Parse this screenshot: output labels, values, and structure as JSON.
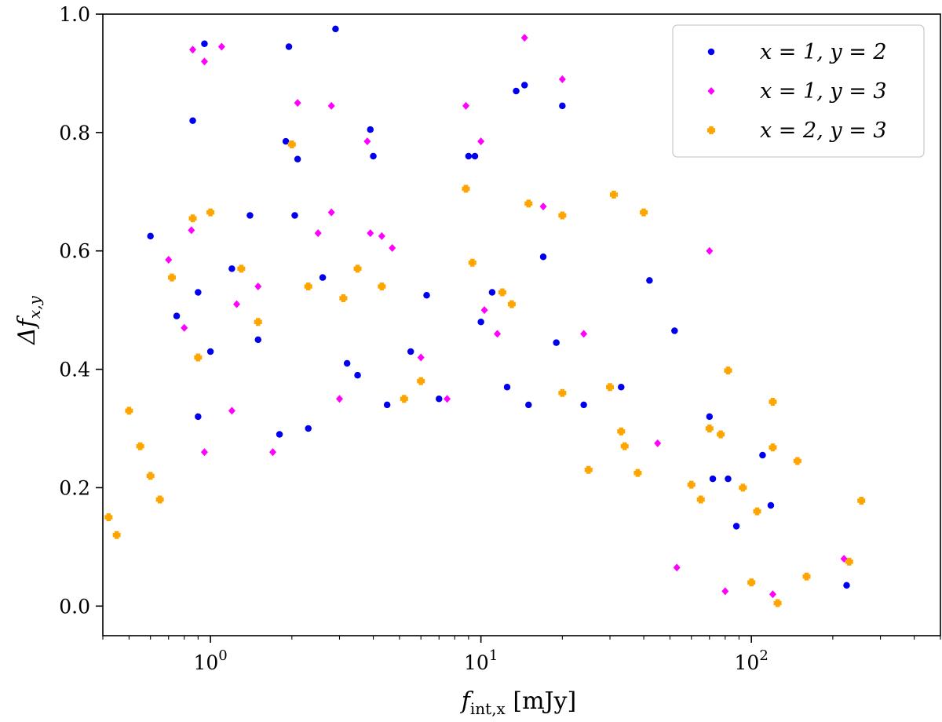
{
  "chart_data": {
    "type": "scatter",
    "title": "",
    "xlabel": "f_int,x [mJy]",
    "xlabel_main": "f",
    "xlabel_sub": "int,x",
    "xlabel_unit": "[mJy]",
    "ylabel": "Δf_x,y",
    "ylabel_main": "Δf",
    "ylabel_sub": "x,y",
    "xscale": "log",
    "xlim": [
      0.4,
      500
    ],
    "ylim": [
      -0.05,
      1.0
    ],
    "grid": false,
    "legend_position": "top-right",
    "x_major_ticks": [
      1,
      10,
      100
    ],
    "x_tick_labels": [
      {
        "base": "10",
        "exp": "0"
      },
      {
        "base": "10",
        "exp": "1"
      },
      {
        "base": "10",
        "exp": "2"
      }
    ],
    "y_ticks": [
      0.0,
      0.2,
      0.4,
      0.6,
      0.8,
      1.0
    ],
    "y_tick_labels": [
      "0.0",
      "0.2",
      "0.4",
      "0.6",
      "0.8",
      "1.0"
    ],
    "series": [
      {
        "name": "x = 1, y = 2",
        "color": "#0000ee",
        "marker": "circle",
        "points": [
          [
            0.6,
            0.625
          ],
          [
            0.75,
            0.49
          ],
          [
            0.86,
            0.82
          ],
          [
            0.9,
            0.53
          ],
          [
            0.95,
            0.95
          ],
          [
            1.0,
            0.43
          ],
          [
            1.2,
            0.57
          ],
          [
            1.4,
            0.66
          ],
          [
            1.95,
            0.945
          ],
          [
            2.05,
            0.66
          ],
          [
            2.1,
            0.755
          ],
          [
            1.9,
            0.785
          ],
          [
            2.9,
            0.975
          ],
          [
            2.6,
            0.555
          ],
          [
            3.9,
            0.805
          ],
          [
            4.0,
            0.76
          ],
          [
            6.3,
            0.525
          ],
          [
            9.0,
            0.76
          ],
          [
            9.5,
            0.76
          ],
          [
            11.0,
            0.53
          ],
          [
            12.5,
            0.37
          ],
          [
            13.5,
            0.87
          ],
          [
            14.5,
            0.88
          ],
          [
            17.0,
            0.59
          ],
          [
            20.0,
            0.845
          ],
          [
            19.0,
            0.445
          ],
          [
            24.0,
            0.34
          ],
          [
            33.0,
            0.37
          ],
          [
            42.0,
            0.55
          ],
          [
            52.0,
            0.465
          ],
          [
            70.0,
            0.32
          ],
          [
            72.0,
            0.215
          ],
          [
            82.0,
            0.215
          ],
          [
            88.0,
            0.135
          ],
          [
            110.0,
            0.255
          ],
          [
            118.0,
            0.17
          ],
          [
            225.0,
            0.035
          ],
          [
            1.5,
            0.45
          ],
          [
            2.3,
            0.3
          ],
          [
            3.2,
            0.41
          ],
          [
            4.5,
            0.34
          ],
          [
            5.5,
            0.43
          ],
          [
            7.0,
            0.35
          ],
          [
            10.0,
            0.48
          ],
          [
            15.0,
            0.34
          ],
          [
            0.9,
            0.32
          ],
          [
            1.8,
            0.29
          ],
          [
            3.5,
            0.39
          ]
        ]
      },
      {
        "name": "x = 1, y = 3",
        "color": "#ff00ff",
        "marker": "diamond",
        "points": [
          [
            0.86,
            0.94
          ],
          [
            0.95,
            0.92
          ],
          [
            1.1,
            0.945
          ],
          [
            0.7,
            0.585
          ],
          [
            0.85,
            0.635
          ],
          [
            0.8,
            0.47
          ],
          [
            1.25,
            0.51
          ],
          [
            2.1,
            0.85
          ],
          [
            2.8,
            0.845
          ],
          [
            2.8,
            0.665
          ],
          [
            3.8,
            0.785
          ],
          [
            3.9,
            0.63
          ],
          [
            4.3,
            0.625
          ],
          [
            4.7,
            0.605
          ],
          [
            8.8,
            0.845
          ],
          [
            10.0,
            0.785
          ],
          [
            14.5,
            0.96
          ],
          [
            20.0,
            0.89
          ],
          [
            17.0,
            0.675
          ],
          [
            10.3,
            0.5
          ],
          [
            11.5,
            0.46
          ],
          [
            24.0,
            0.46
          ],
          [
            70.0,
            0.6
          ],
          [
            45.0,
            0.275
          ],
          [
            53.0,
            0.065
          ],
          [
            80.0,
            0.025
          ],
          [
            120.0,
            0.02
          ],
          [
            220.0,
            0.08
          ],
          [
            1.5,
            0.54
          ],
          [
            2.5,
            0.63
          ],
          [
            6.0,
            0.42
          ],
          [
            7.5,
            0.35
          ],
          [
            3.0,
            0.35
          ],
          [
            1.2,
            0.33
          ],
          [
            0.95,
            0.26
          ],
          [
            1.7,
            0.26
          ]
        ]
      },
      {
        "name": "x = 2, y = 3",
        "color": "#ffa500",
        "marker": "plus",
        "points": [
          [
            0.42,
            0.15
          ],
          [
            0.45,
            0.12
          ],
          [
            0.5,
            0.33
          ],
          [
            0.86,
            0.655
          ],
          [
            1.0,
            0.665
          ],
          [
            0.9,
            0.42
          ],
          [
            0.72,
            0.555
          ],
          [
            1.5,
            0.48
          ],
          [
            2.0,
            0.78
          ],
          [
            3.5,
            0.57
          ],
          [
            4.3,
            0.54
          ],
          [
            8.8,
            0.705
          ],
          [
            15.0,
            0.68
          ],
          [
            20.0,
            0.66
          ],
          [
            31.0,
            0.695
          ],
          [
            40.0,
            0.665
          ],
          [
            30.0,
            0.37
          ],
          [
            33.0,
            0.295
          ],
          [
            34.0,
            0.27
          ],
          [
            38.0,
            0.225
          ],
          [
            60.0,
            0.205
          ],
          [
            65.0,
            0.18
          ],
          [
            70.0,
            0.3
          ],
          [
            77.0,
            0.29
          ],
          [
            82.0,
            0.398
          ],
          [
            93.0,
            0.2
          ],
          [
            105.0,
            0.16
          ],
          [
            120.0,
            0.268
          ],
          [
            120.0,
            0.345
          ],
          [
            148.0,
            0.245
          ],
          [
            160.0,
            0.05
          ],
          [
            230.0,
            0.075
          ],
          [
            255.0,
            0.178
          ],
          [
            125.0,
            0.005
          ],
          [
            100.0,
            0.04
          ],
          [
            13.0,
            0.51
          ],
          [
            12.0,
            0.53
          ],
          [
            20.0,
            0.36
          ],
          [
            25.0,
            0.23
          ],
          [
            9.3,
            0.58
          ],
          [
            1.3,
            0.57
          ],
          [
            2.3,
            0.54
          ],
          [
            3.1,
            0.52
          ],
          [
            5.2,
            0.35
          ],
          [
            6.0,
            0.38
          ],
          [
            0.55,
            0.27
          ],
          [
            0.6,
            0.22
          ],
          [
            0.65,
            0.18
          ]
        ]
      }
    ]
  }
}
